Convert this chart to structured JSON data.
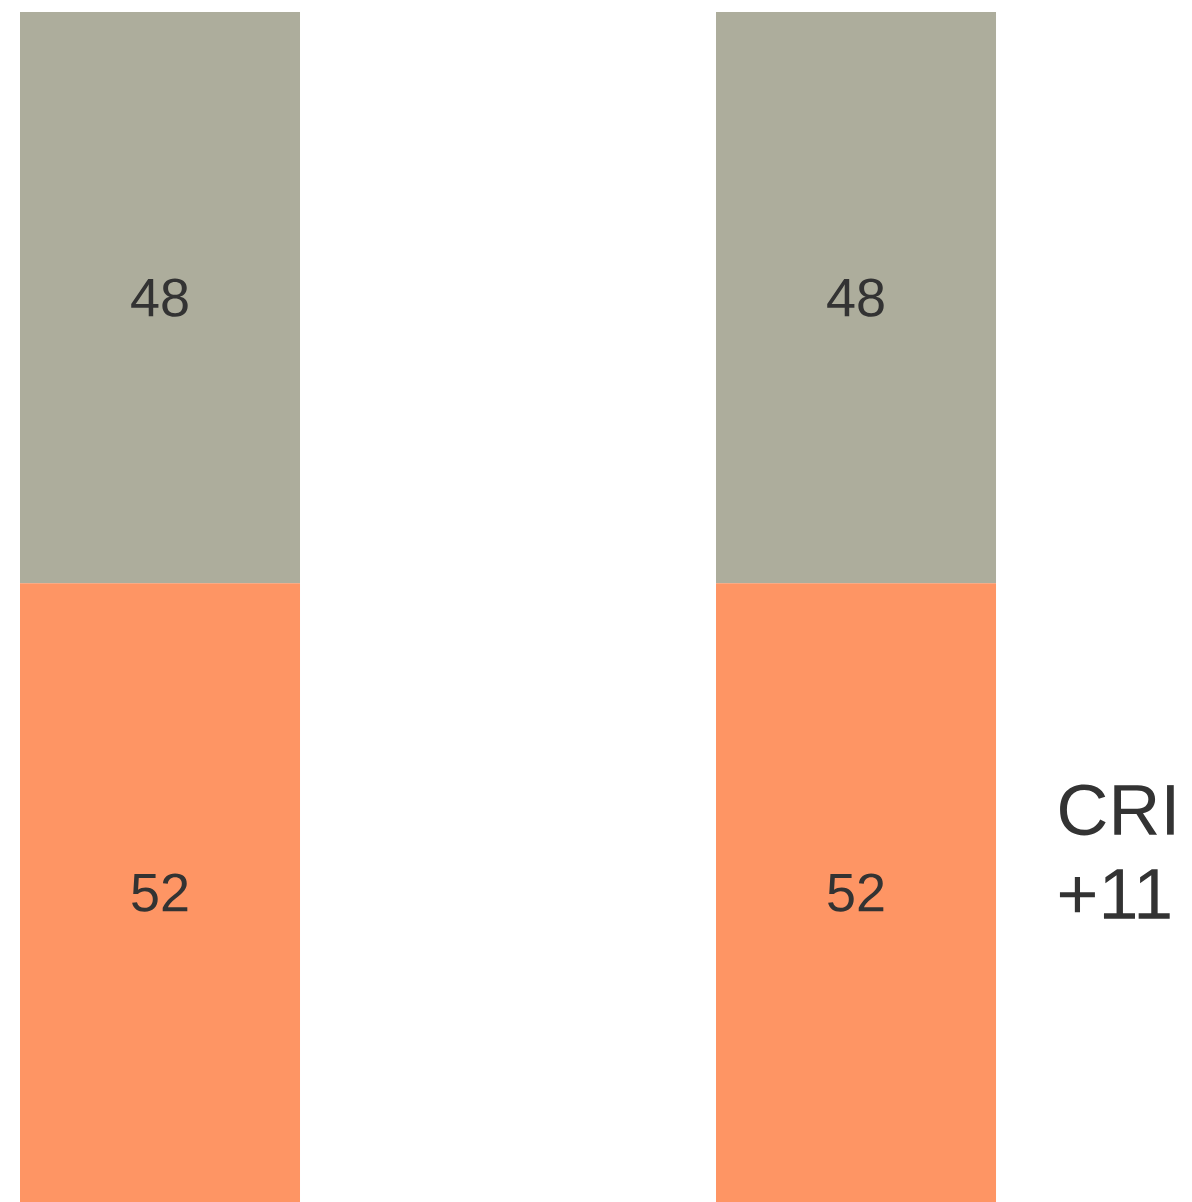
{
  "chart_data": {
    "type": "bar",
    "stacked": true,
    "categories": [
      null,
      null
    ],
    "series": [
      {
        "color": "#fe9564",
        "values": [
          52,
          52
        ]
      },
      {
        "color": "#adad9c",
        "values": [
          48,
          48
        ]
      }
    ],
    "data_labels": true,
    "annotations": [
      "CRI",
      "+11"
    ]
  }
}
